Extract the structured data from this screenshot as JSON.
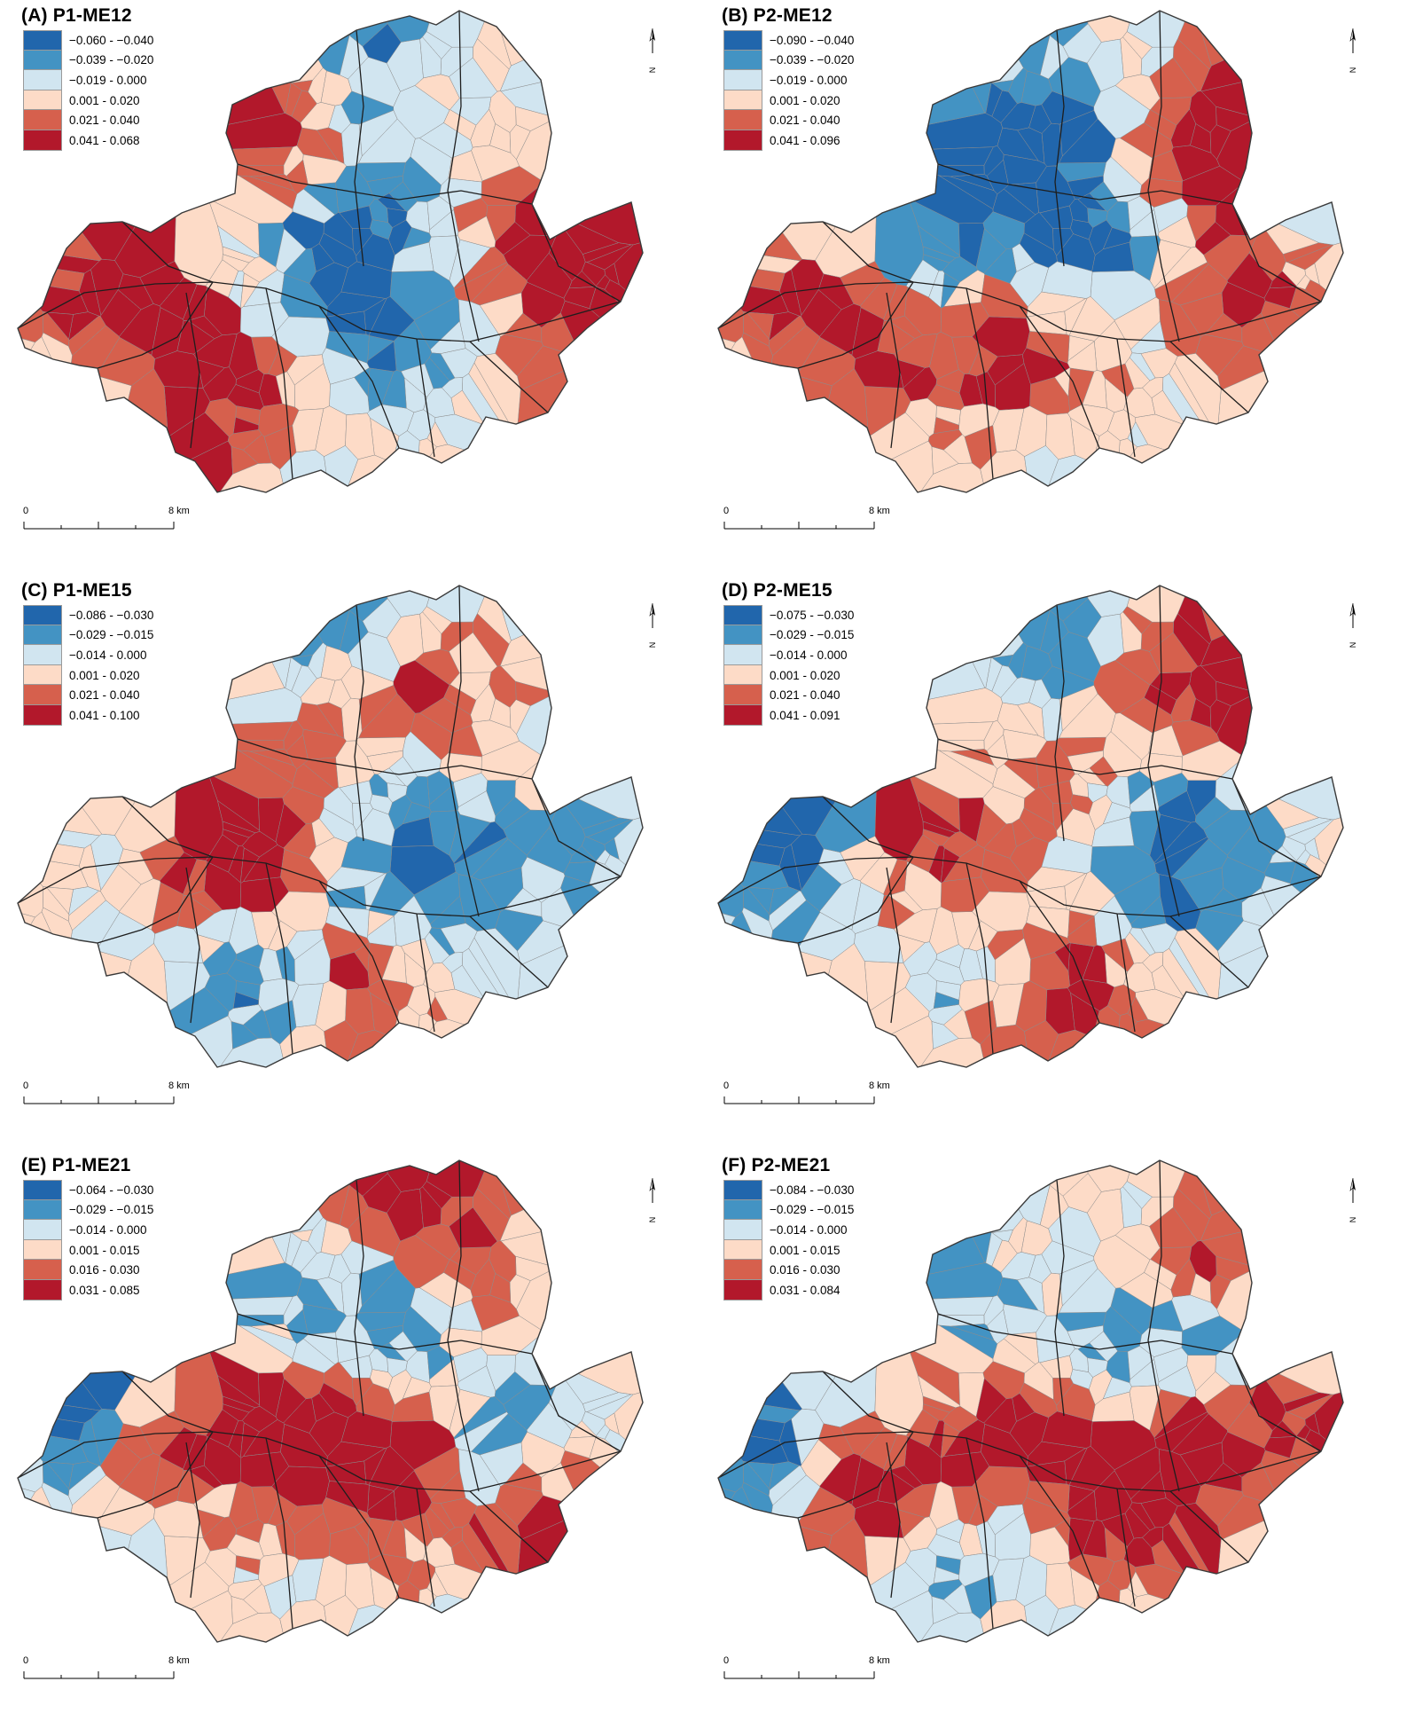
{
  "legend_colors": [
    "#2166ac",
    "#4393c3",
    "#d1e5f0",
    "#fddbc7",
    "#d6604d",
    "#b2182b"
  ],
  "panels": [
    {
      "title": "(A) P1-ME12",
      "legend": [
        "−0.060 - −0.040",
        "−0.039 - −0.020",
        "−0.019 - 0.000",
        "0.001 - 0.020",
        "0.021 - 0.040",
        "0.041 - 0.068"
      ],
      "scale_zero": "0",
      "scale_label": "8 km",
      "north_label": "N"
    },
    {
      "title": "(B) P2-ME12",
      "legend": [
        "−0.090 - −0.040",
        "−0.039 - −0.020",
        "−0.019 - 0.000",
        "0.001 - 0.020",
        "0.021 - 0.040",
        "0.041 - 0.096"
      ],
      "scale_zero": "0",
      "scale_label": "8 km",
      "north_label": "N"
    },
    {
      "title": "(C) P1-ME15",
      "legend": [
        "−0.086 - −0.030",
        "−0.029 - −0.015",
        "−0.014 - 0.000",
        "0.001 - 0.020",
        "0.021 - 0.040",
        "0.041 - 0.100"
      ],
      "scale_zero": "0",
      "scale_label": "8 km",
      "north_label": "N"
    },
    {
      "title": "(D) P2-ME15",
      "legend": [
        "−0.075 - −0.030",
        "−0.029 - −0.015",
        "−0.014 - 0.000",
        "0.001 - 0.020",
        "0.021 - 0.040",
        "0.041 - 0.091"
      ],
      "scale_zero": "0",
      "scale_label": "8 km",
      "north_label": "N"
    },
    {
      "title": "(E) P1-ME21",
      "legend": [
        "−0.064 - −0.030",
        "−0.029 - −0.015",
        "−0.014 - 0.000",
        "0.001 - 0.015",
        "0.016 - 0.030",
        "0.031 - 0.085"
      ],
      "scale_zero": "0",
      "scale_label": "8 km",
      "north_label": "N"
    },
    {
      "title": "(F) P2-ME21",
      "legend": [
        "−0.084 - −0.030",
        "−0.029 - −0.015",
        "−0.014 - 0.000",
        "0.001 - 0.015",
        "0.016 - 0.030",
        "0.031 - 0.084"
      ],
      "scale_zero": "0",
      "scale_label": "8 km",
      "north_label": "N"
    }
  ]
}
